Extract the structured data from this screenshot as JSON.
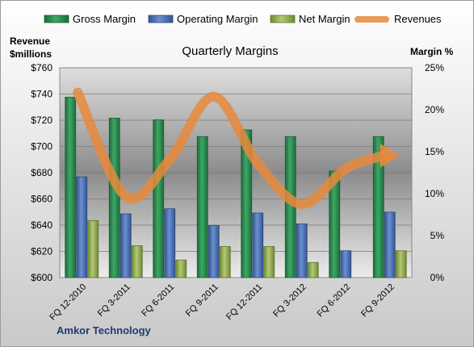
{
  "chart_data": {
    "type": "bar",
    "title": "Quarterly Margins",
    "subtitle_company": "Amkor Technology",
    "left_axis_label_line1": "Revenue",
    "left_axis_label_line2": "$millions",
    "right_axis_label": "Margin %",
    "categories": [
      "FQ 12-2010",
      "FQ 3-2011",
      "FQ 6-2011",
      "FQ 9-2011",
      "FQ 12-2011",
      "FQ 3-2012",
      "FQ 6-2012",
      "FQ 9-2012"
    ],
    "left_ylim": [
      600,
      760
    ],
    "left_ticks": [
      600,
      620,
      640,
      660,
      680,
      700,
      720,
      740,
      760
    ],
    "left_tick_labels": [
      "$600",
      "$620",
      "$640",
      "$660",
      "$680",
      "$700",
      "$720",
      "$740",
      "$760"
    ],
    "right_ylim": [
      0,
      25
    ],
    "right_ticks": [
      0,
      5,
      10,
      15,
      20,
      25
    ],
    "right_tick_labels": [
      "0%",
      "5%",
      "10%",
      "15%",
      "20%",
      "25%"
    ],
    "legend_position": "top",
    "series": [
      {
        "name": "Gross Margin",
        "axis": "right",
        "kind": "bar",
        "color": "#2e8b4f",
        "values": [
          21.5,
          19.0,
          18.8,
          16.8,
          17.6,
          16.8,
          12.7,
          16.8
        ]
      },
      {
        "name": "Operating Margin",
        "axis": "right",
        "kind": "bar",
        "color": "#4f73b4",
        "values": [
          12.0,
          7.6,
          8.2,
          6.2,
          7.7,
          6.4,
          3.2,
          7.8
        ]
      },
      {
        "name": "Net Margin",
        "axis": "right",
        "kind": "bar",
        "color": "#9bb358",
        "values": [
          6.8,
          3.8,
          2.1,
          3.7,
          3.7,
          1.8,
          0.0,
          3.2
        ]
      },
      {
        "name": "Revenues",
        "axis": "left",
        "kind": "line",
        "color": "#e88a3c",
        "values": [
          735,
          662,
          690,
          738,
          687,
          656,
          683,
          693
        ]
      }
    ]
  }
}
